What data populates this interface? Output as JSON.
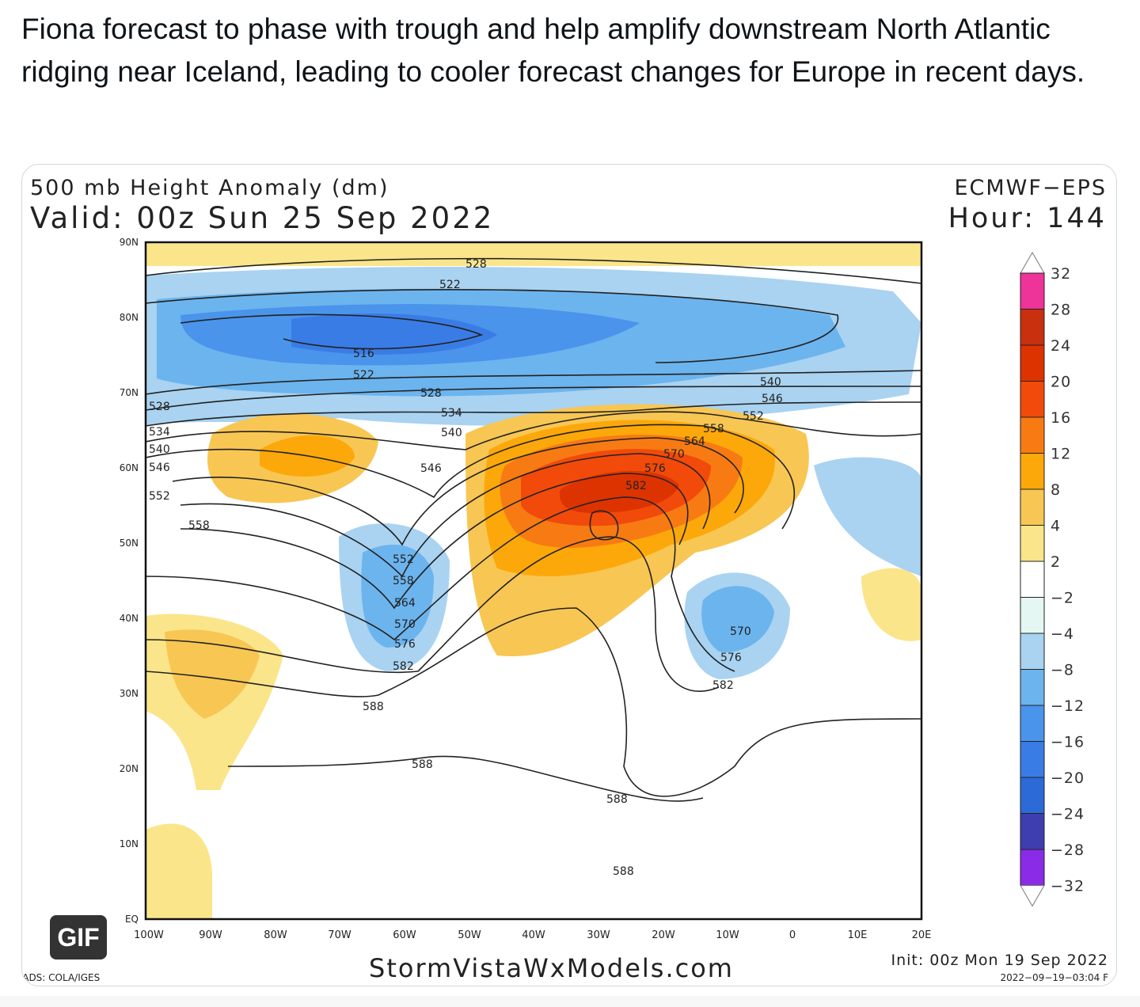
{
  "tweet": {
    "text": "Fiona forecast to phase with trough and help amplify downstream North Atlantic ridging near Iceland, leading to cooler forecast changes for Europe in recent days."
  },
  "map": {
    "title": "500 mb Height Anomaly (dm)",
    "valid": "Valid: 00z Sun 25 Sep 2022",
    "model": "ECMWF−EPS",
    "hour": "Hour: 144",
    "init": "Init: 00z Mon 19 Sep 2022",
    "timestamp": "2022−09−19−03:04 F",
    "source": "GrADS: COLA/IGES",
    "watermark": "StormVistaWxModels.com",
    "lat_labels": [
      "90N",
      "80N",
      "70N",
      "60N",
      "50N",
      "40N",
      "30N",
      "20N",
      "10N",
      "EQ"
    ],
    "lon_labels": [
      "100W",
      "90W",
      "80W",
      "70W",
      "60W",
      "50W",
      "40W",
      "30W",
      "20W",
      "10W",
      "0",
      "10E",
      "20E"
    ],
    "contour_labels": [
      "528",
      "522",
      "516",
      "522",
      "528",
      "534",
      "540",
      "546",
      "540",
      "546",
      "552",
      "558",
      "564",
      "570",
      "576",
      "582",
      "528",
      "534",
      "540",
      "546",
      "552",
      "558",
      "552",
      "558",
      "564",
      "570",
      "576",
      "582",
      "588",
      "570",
      "576",
      "582",
      "588",
      "588",
      "588"
    ],
    "colorbar": {
      "labels": [
        "32",
        "28",
        "24",
        "20",
        "16",
        "12",
        "8",
        "4",
        "2",
        "−2",
        "−4",
        "−8",
        "−12",
        "−16",
        "−20",
        "−24",
        "−28",
        "−32"
      ],
      "colors": [
        "#ee3399",
        "#c8300e",
        "#dd3300",
        "#f24a0a",
        "#f77b12",
        "#fca80a",
        "#f8c653",
        "#fbe58a",
        "#ffffff",
        "#e4f7f3",
        "#a9d3f1",
        "#6cb4ee",
        "#4a94ec",
        "#3a7ce6",
        "#2c6ad8",
        "#3e3eb0",
        "#8a2be8"
      ]
    }
  },
  "media": {
    "badge": "GIF"
  }
}
